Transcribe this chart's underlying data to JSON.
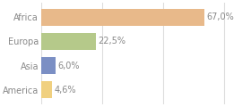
{
  "categories": [
    "Africa",
    "Europa",
    "Asia",
    "America"
  ],
  "values": [
    67.0,
    22.5,
    6.0,
    4.6
  ],
  "labels": [
    "67,0%",
    "22,5%",
    "6,0%",
    "4,6%"
  ],
  "bar_colors": [
    "#e8b98a",
    "#b5c98a",
    "#7b8fc4",
    "#f0d080"
  ],
  "background_color": "#ffffff",
  "xlim": [
    0,
    85
  ],
  "bar_height": 0.7,
  "label_fontsize": 7.0,
  "tick_fontsize": 7.0,
  "grid_color": "#dddddd",
  "text_color": "#888888"
}
